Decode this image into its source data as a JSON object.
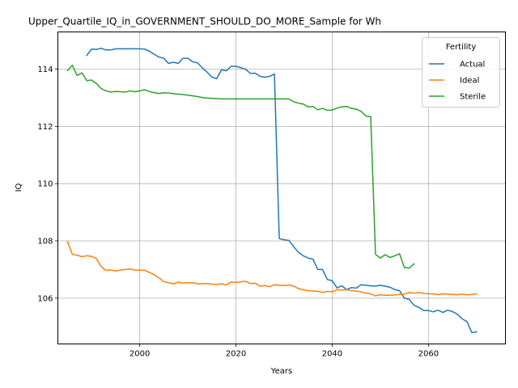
{
  "chart_data": {
    "type": "line",
    "title": "Upper_Quartile_IQ_in_GOVERNMENT_SHOULD_DO_MORE_Sample for Wh",
    "xlabel": "Years",
    "ylabel": "IQ",
    "xlim": [
      1983,
      2076
    ],
    "ylim": [
      104.4,
      115.3
    ],
    "xticks": [
      2000,
      2020,
      2040,
      2060
    ],
    "yticks": [
      106,
      108,
      110,
      112,
      114
    ],
    "grid": true,
    "legend": {
      "title": "Fertility",
      "position": "upper right"
    },
    "series": [
      {
        "name": "Actual",
        "color": "#1f77b4",
        "x": [
          1989,
          1990,
          1991,
          1992,
          1993,
          1994,
          1995,
          1996,
          1997,
          1998,
          1999,
          2000,
          2001,
          2002,
          2003,
          2004,
          2005,
          2006,
          2007,
          2008,
          2009,
          2010,
          2011,
          2012,
          2013,
          2014,
          2015,
          2016,
          2017,
          2018,
          2019,
          2020,
          2021,
          2022,
          2023,
          2024,
          2025,
          2026,
          2027,
          2028,
          2029,
          2030,
          2031,
          2032,
          2033,
          2034,
          2035,
          2036,
          2037,
          2038,
          2039,
          2040,
          2041,
          2042,
          2043,
          2044,
          2045,
          2046,
          2047,
          2048,
          2049,
          2050,
          2051,
          2052,
          2053,
          2054,
          2055,
          2056,
          2057,
          2058,
          2059,
          2060,
          2061,
          2062,
          2063,
          2064,
          2065,
          2066,
          2067,
          2068,
          2069,
          2070
        ],
        "y": [
          114.48,
          114.7,
          114.69,
          114.73,
          114.67,
          114.67,
          114.71,
          114.71,
          114.71,
          114.71,
          114.71,
          114.71,
          114.7,
          114.63,
          114.52,
          114.42,
          114.38,
          114.2,
          114.24,
          114.2,
          114.38,
          114.38,
          114.26,
          114.22,
          114.05,
          113.9,
          113.72,
          113.67,
          113.98,
          113.94,
          114.1,
          114.1,
          114.05,
          114.0,
          113.85,
          113.86,
          113.75,
          113.72,
          113.75,
          113.83,
          108.08,
          108.04,
          108.02,
          107.8,
          107.6,
          107.48,
          107.4,
          107.36,
          107.0,
          107.0,
          106.65,
          106.61,
          106.36,
          106.43,
          106.3,
          106.37,
          106.35,
          106.47,
          106.45,
          106.43,
          106.42,
          106.45,
          106.42,
          106.38,
          106.3,
          106.26,
          106.0,
          105.96,
          105.75,
          105.68,
          105.57,
          105.57,
          105.52,
          105.58,
          105.5,
          105.58,
          105.53,
          105.44,
          105.28,
          105.18,
          104.8,
          104.82
        ]
      },
      {
        "name": "Ideal",
        "color": "#ff7f0e",
        "x": [
          1985,
          1986,
          1987,
          1988,
          1989,
          1990,
          1991,
          1992,
          1993,
          1994,
          1995,
          1996,
          1997,
          1998,
          1999,
          2000,
          2001,
          2002,
          2003,
          2004,
          2005,
          2006,
          2007,
          2008,
          2009,
          2010,
          2011,
          2012,
          2013,
          2014,
          2015,
          2016,
          2017,
          2018,
          2019,
          2020,
          2021,
          2022,
          2023,
          2024,
          2025,
          2026,
          2027,
          2028,
          2029,
          2030,
          2031,
          2032,
          2033,
          2034,
          2035,
          2036,
          2037,
          2038,
          2039,
          2040,
          2041,
          2042,
          2043,
          2044,
          2045,
          2046,
          2047,
          2048,
          2049,
          2050,
          2051,
          2052,
          2053,
          2054,
          2055,
          2056,
          2057,
          2058,
          2059,
          2060,
          2061,
          2062,
          2063,
          2064,
          2065,
          2066,
          2067,
          2068,
          2069,
          2070
        ],
        "y": [
          107.97,
          107.53,
          107.5,
          107.45,
          107.48,
          107.46,
          107.38,
          107.1,
          106.97,
          106.98,
          106.95,
          106.98,
          107.0,
          107.02,
          106.98,
          106.98,
          106.98,
          106.9,
          106.82,
          106.71,
          106.58,
          106.54,
          106.5,
          106.56,
          106.53,
          106.54,
          106.54,
          106.5,
          106.5,
          106.51,
          106.49,
          106.48,
          106.5,
          106.46,
          106.56,
          106.55,
          106.57,
          106.59,
          106.51,
          106.52,
          106.42,
          106.44,
          106.4,
          106.47,
          106.45,
          106.44,
          106.46,
          106.42,
          106.33,
          106.29,
          106.26,
          106.25,
          106.24,
          106.2,
          106.24,
          106.22,
          106.3,
          106.28,
          106.3,
          106.26,
          106.25,
          106.22,
          106.18,
          106.15,
          106.08,
          106.12,
          106.1,
          106.1,
          106.11,
          106.13,
          106.14,
          106.2,
          106.17,
          106.2,
          106.16,
          106.15,
          106.15,
          106.12,
          106.15,
          106.14,
          106.13,
          106.12,
          106.14,
          106.12,
          106.13,
          106.15
        ]
      },
      {
        "name": "Sterile",
        "color": "#2ca02c",
        "x": [
          1985,
          1986,
          1987,
          1988,
          1989,
          1990,
          1991,
          1992,
          1993,
          1994,
          1995,
          1996,
          1997,
          1998,
          1999,
          2000,
          2001,
          2002,
          2003,
          2004,
          2005,
          2006,
          2007,
          2008,
          2009,
          2010,
          2011,
          2012,
          2013,
          2014,
          2015,
          2016,
          2017,
          2018,
          2019,
          2020,
          2021,
          2022,
          2023,
          2024,
          2025,
          2026,
          2027,
          2028,
          2029,
          2030,
          2031,
          2032,
          2033,
          2034,
          2035,
          2036,
          2037,
          2038,
          2039,
          2040,
          2041,
          2042,
          2043,
          2044,
          2045,
          2046,
          2047,
          2048,
          2049,
          2050,
          2051,
          2052,
          2053,
          2054,
          2055,
          2056,
          2057
        ],
        "y": [
          113.95,
          114.14,
          113.78,
          113.87,
          113.6,
          113.62,
          113.5,
          113.32,
          113.24,
          113.2,
          113.22,
          113.21,
          113.2,
          113.24,
          113.21,
          113.24,
          113.28,
          113.22,
          113.18,
          113.15,
          113.17,
          113.17,
          113.14,
          113.13,
          113.11,
          113.09,
          113.07,
          113.04,
          113.01,
          112.99,
          112.98,
          112.97,
          112.96,
          112.96,
          112.96,
          112.96,
          112.96,
          112.96,
          112.96,
          112.96,
          112.96,
          112.96,
          112.96,
          112.96,
          112.96,
          112.96,
          112.96,
          112.86,
          112.81,
          112.78,
          112.68,
          112.7,
          112.58,
          112.63,
          112.56,
          112.57,
          112.64,
          112.68,
          112.7,
          112.63,
          112.6,
          112.53,
          112.36,
          112.34,
          107.53,
          107.4,
          107.52,
          107.42,
          107.48,
          107.55,
          107.07,
          107.05,
          107.2
        ]
      }
    ]
  }
}
